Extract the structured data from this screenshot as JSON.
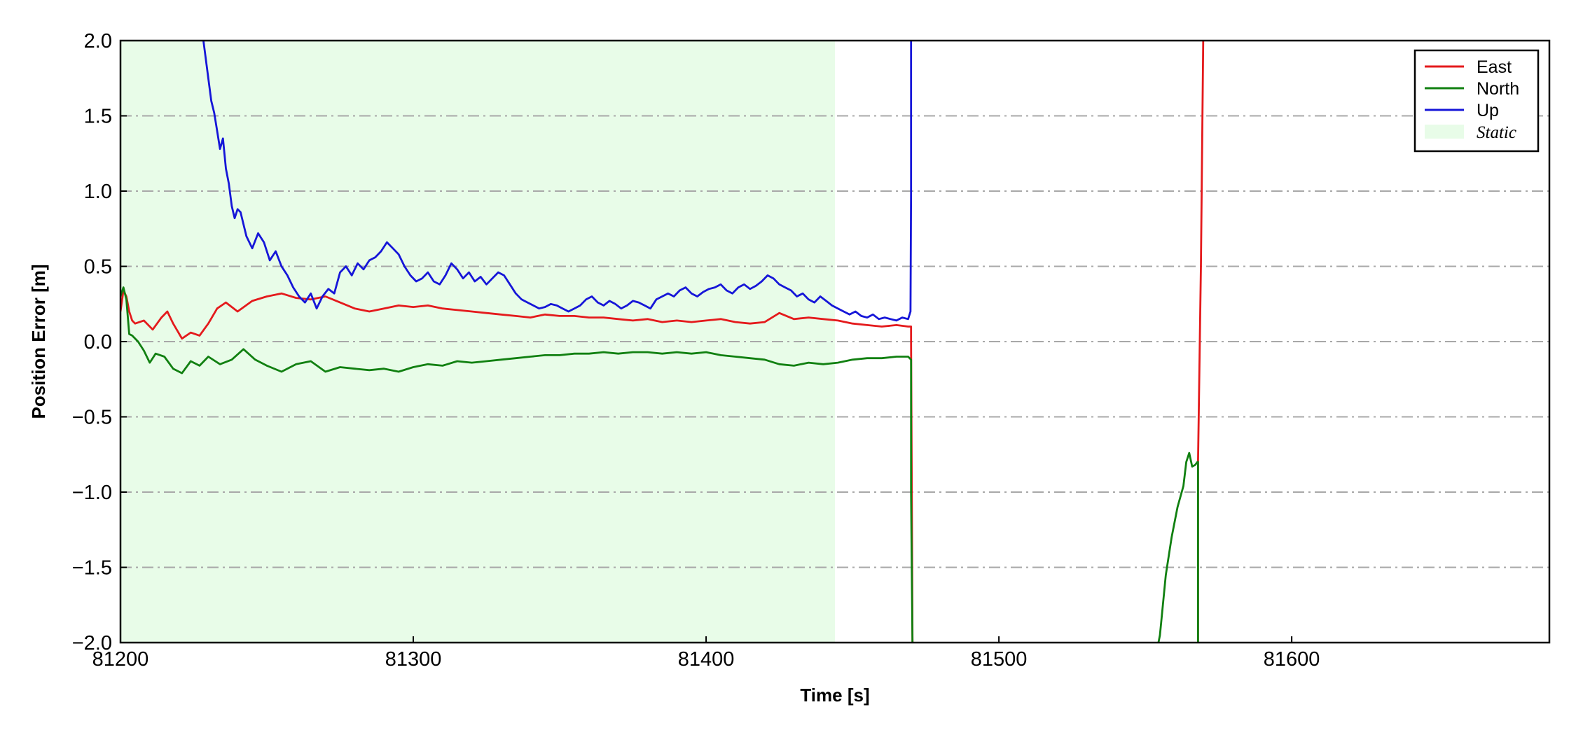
{
  "chart_data": {
    "type": "line",
    "xlabel": "Time [s]",
    "ylabel": "Position Error [m]",
    "xlim": [
      81200,
      81688
    ],
    "ylim": [
      -2.0,
      2.0
    ],
    "xticks": [
      81200,
      81300,
      81400,
      81500,
      81600
    ],
    "yticks": [
      -2.0,
      -1.5,
      -1.0,
      -0.5,
      0.0,
      0.5,
      1.0,
      1.5,
      2.0
    ],
    "ytick_labels": [
      "−2.0",
      "−1.5",
      "−1.0",
      "−0.5",
      "0.0",
      "0.5",
      "1.0",
      "1.5",
      "2.0"
    ],
    "grid": "horizontal dash-dot",
    "legend_position": "top-right",
    "static_region": {
      "label": "Static",
      "x_start": 81200,
      "x_end": 81444,
      "color": "#e8fce8"
    },
    "series": [
      {
        "name": "East",
        "color": "#e41a1c",
        "x": [
          81200,
          81201,
          81202,
          81203,
          81204,
          81205,
          81208,
          81211,
          81214,
          81216,
          81218,
          81221,
          81224,
          81227,
          81230,
          81233,
          81236,
          81240,
          81245,
          81250,
          81255,
          81260,
          81265,
          81270,
          81275,
          81280,
          81285,
          81290,
          81295,
          81300,
          81305,
          81310,
          81315,
          81320,
          81325,
          81330,
          81335,
          81340,
          81345,
          81350,
          81355,
          81360,
          81365,
          81370,
          81375,
          81380,
          81385,
          81390,
          81395,
          81400,
          81405,
          81410,
          81415,
          81420,
          81425,
          81430,
          81435,
          81440,
          81445,
          81450,
          81455,
          81460,
          81465,
          81469,
          81470,
          81470,
          81470.5,
          81567.5,
          81568,
          81568,
          81569,
          81569.8
        ],
        "y": [
          0.2,
          0.34,
          0.3,
          0.2,
          0.14,
          0.12,
          0.14,
          0.08,
          0.16,
          0.2,
          0.12,
          0.02,
          0.06,
          0.04,
          0.12,
          0.22,
          0.26,
          0.2,
          0.27,
          0.3,
          0.32,
          0.29,
          0.28,
          0.3,
          0.26,
          0.22,
          0.2,
          0.22,
          0.24,
          0.23,
          0.24,
          0.22,
          0.21,
          0.2,
          0.19,
          0.18,
          0.17,
          0.16,
          0.18,
          0.17,
          0.17,
          0.16,
          0.16,
          0.15,
          0.14,
          0.15,
          0.13,
          0.14,
          0.13,
          0.14,
          0.15,
          0.13,
          0.12,
          0.13,
          0.19,
          0.15,
          0.16,
          0.15,
          0.14,
          0.12,
          0.11,
          0.1,
          0.11,
          0.1,
          0.1,
          0.0,
          -2.05,
          -2.05,
          -2.05,
          -0.8,
          0.5,
          2.05
        ]
      },
      {
        "name": "North",
        "color": "#118011",
        "x": [
          81200,
          81201,
          81202,
          81203,
          81204,
          81206,
          81208,
          81210,
          81212,
          81215,
          81218,
          81221,
          81224,
          81227,
          81230,
          81234,
          81238,
          81242,
          81246,
          81250,
          81255,
          81260,
          81265,
          81270,
          81275,
          81280,
          81285,
          81290,
          81295,
          81300,
          81305,
          81310,
          81315,
          81320,
          81325,
          81330,
          81335,
          81340,
          81345,
          81350,
          81355,
          81360,
          81365,
          81370,
          81375,
          81380,
          81385,
          81390,
          81395,
          81400,
          81405,
          81410,
          81415,
          81420,
          81425,
          81430,
          81435,
          81440,
          81445,
          81450,
          81455,
          81460,
          81465,
          81469,
          81470,
          81470,
          81470.5,
          81554,
          81555,
          81557,
          81559,
          81561,
          81563,
          81564,
          81565,
          81566,
          81567,
          81567.8,
          81568,
          81568
        ],
        "y": [
          0.3,
          0.36,
          0.28,
          0.05,
          0.04,
          0.0,
          -0.06,
          -0.14,
          -0.08,
          -0.1,
          -0.18,
          -0.21,
          -0.13,
          -0.16,
          -0.1,
          -0.15,
          -0.12,
          -0.05,
          -0.12,
          -0.16,
          -0.2,
          -0.15,
          -0.13,
          -0.2,
          -0.17,
          -0.18,
          -0.19,
          -0.18,
          -0.2,
          -0.17,
          -0.15,
          -0.16,
          -0.13,
          -0.14,
          -0.13,
          -0.12,
          -0.11,
          -0.1,
          -0.09,
          -0.09,
          -0.08,
          -0.08,
          -0.07,
          -0.08,
          -0.07,
          -0.07,
          -0.08,
          -0.07,
          -0.08,
          -0.07,
          -0.09,
          -0.1,
          -0.11,
          -0.12,
          -0.15,
          -0.16,
          -0.14,
          -0.15,
          -0.14,
          -0.12,
          -0.11,
          -0.11,
          -0.1,
          -0.1,
          -0.12,
          -1.0,
          -2.05,
          -2.05,
          -1.95,
          -1.55,
          -1.3,
          -1.1,
          -0.96,
          -0.8,
          -0.74,
          -0.83,
          -0.82,
          -0.8,
          -0.8,
          -2.05
        ]
      },
      {
        "name": "Up",
        "color": "#1616d8",
        "x": [
          81228,
          81229,
          81230,
          81231,
          81232,
          81233,
          81234,
          81235,
          81236,
          81237,
          81238,
          81239,
          81240,
          81241,
          81242,
          81243,
          81245,
          81247,
          81249,
          81251,
          81253,
          81255,
          81257,
          81259,
          81261,
          81263,
          81265,
          81267,
          81269,
          81271,
          81273,
          81275,
          81277,
          81279,
          81281,
          81283,
          81285,
          81287,
          81289,
          81291,
          81293,
          81295,
          81297,
          81299,
          81301,
          81303,
          81305,
          81307,
          81309,
          81311,
          81313,
          81315,
          81317,
          81319,
          81321,
          81323,
          81325,
          81327,
          81329,
          81331,
          81333,
          81335,
          81337,
          81339,
          81341,
          81343,
          81345,
          81347,
          81349,
          81351,
          81353,
          81355,
          81357,
          81359,
          81361,
          81363,
          81365,
          81367,
          81369,
          81371,
          81373,
          81375,
          81377,
          81379,
          81381,
          81383,
          81385,
          81387,
          81389,
          81391,
          81393,
          81395,
          81397,
          81399,
          81401,
          81403,
          81405,
          81407,
          81409,
          81411,
          81413,
          81415,
          81417,
          81419,
          81421,
          81423,
          81425,
          81427,
          81429,
          81431,
          81433,
          81435,
          81437,
          81439,
          81441,
          81443,
          81445,
          81447,
          81449,
          81451,
          81453,
          81455,
          81457,
          81459,
          81461,
          81463,
          81465,
          81467,
          81469,
          81469.8,
          81470,
          81470
        ],
        "y": [
          2.05,
          1.9,
          1.75,
          1.6,
          1.52,
          1.4,
          1.28,
          1.35,
          1.15,
          1.05,
          0.9,
          0.82,
          0.88,
          0.86,
          0.78,
          0.7,
          0.62,
          0.72,
          0.66,
          0.54,
          0.6,
          0.5,
          0.44,
          0.36,
          0.3,
          0.26,
          0.32,
          0.22,
          0.3,
          0.35,
          0.32,
          0.46,
          0.5,
          0.44,
          0.52,
          0.48,
          0.54,
          0.56,
          0.6,
          0.66,
          0.62,
          0.58,
          0.5,
          0.44,
          0.4,
          0.42,
          0.46,
          0.4,
          0.38,
          0.44,
          0.52,
          0.48,
          0.42,
          0.46,
          0.4,
          0.43,
          0.38,
          0.42,
          0.46,
          0.44,
          0.38,
          0.32,
          0.28,
          0.26,
          0.24,
          0.22,
          0.23,
          0.25,
          0.24,
          0.22,
          0.2,
          0.22,
          0.24,
          0.28,
          0.3,
          0.26,
          0.24,
          0.27,
          0.25,
          0.22,
          0.24,
          0.27,
          0.26,
          0.24,
          0.22,
          0.28,
          0.3,
          0.32,
          0.3,
          0.34,
          0.36,
          0.32,
          0.3,
          0.33,
          0.35,
          0.36,
          0.38,
          0.34,
          0.32,
          0.36,
          0.38,
          0.35,
          0.37,
          0.4,
          0.44,
          0.42,
          0.38,
          0.36,
          0.34,
          0.3,
          0.32,
          0.28,
          0.26,
          0.3,
          0.27,
          0.24,
          0.22,
          0.2,
          0.18,
          0.2,
          0.17,
          0.16,
          0.18,
          0.15,
          0.16,
          0.15,
          0.14,
          0.16,
          0.15,
          0.2,
          1.0,
          2.05
        ]
      }
    ]
  }
}
